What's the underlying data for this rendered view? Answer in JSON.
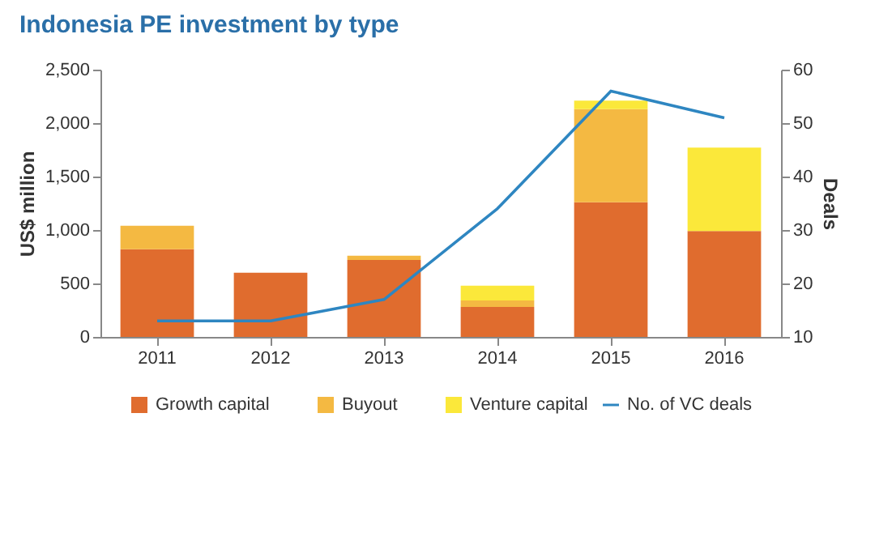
{
  "chart_data": {
    "type": "bar",
    "title": "Indonesia PE investment by type",
    "ylabel": "US$ million",
    "y2label": "Deals",
    "categories": [
      "2011",
      "2012",
      "2013",
      "2014",
      "2015",
      "2016"
    ],
    "stacked": true,
    "series": [
      {
        "name": "Growth capital",
        "color": "#e06c2e",
        "values": [
          820,
          600,
          720,
          280,
          1260,
          990
        ]
      },
      {
        "name": "Buyout",
        "color": "#f4b942",
        "values": [
          220,
          null,
          40,
          60,
          870,
          null
        ]
      },
      {
        "name": "Venture capital",
        "color": "#fbe83a",
        "values": [
          null,
          null,
          null,
          140,
          80,
          780
        ]
      },
      {
        "name": "No. of VC deals",
        "color": "#2e86c1",
        "type": "line",
        "axis": "y2",
        "values": [
          13,
          13,
          17,
          34,
          56,
          51
        ]
      }
    ],
    "ylim": [
      0,
      2500
    ],
    "yticks": [
      0,
      500,
      {
        "value": 1000,
        "label": "1,000"
      },
      {
        "value": 1500,
        "label": "1,500"
      },
      {
        "value": 2000,
        "label": "2,000"
      },
      {
        "value": 2500,
        "label": "2,500"
      }
    ],
    "y2lim": [
      10,
      60
    ],
    "y2ticks": [
      10,
      20,
      30,
      40,
      50,
      60
    ],
    "grid": false,
    "legend": "bottom"
  }
}
